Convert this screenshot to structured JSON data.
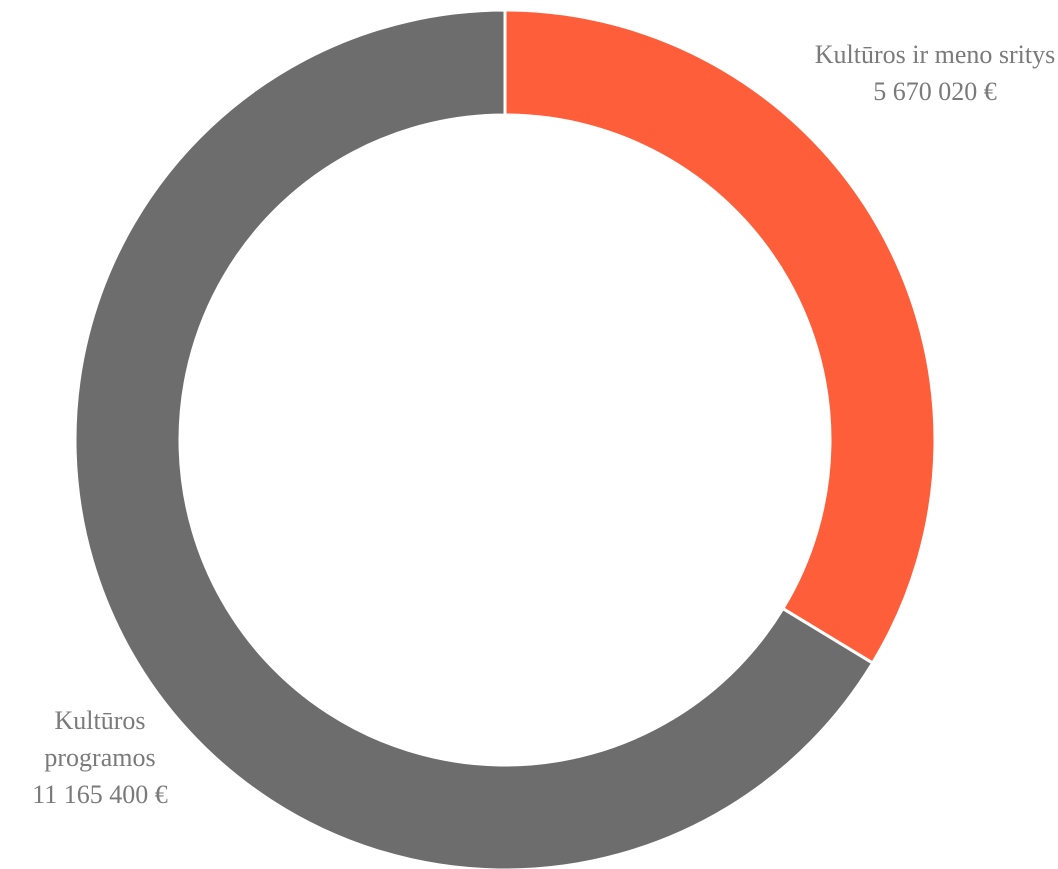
{
  "chart_data": {
    "type": "donut",
    "categories": [
      "Kultūros ir meno sritys",
      "Kultūros programos"
    ],
    "values": [
      5670020,
      11165400
    ],
    "value_labels": [
      "5 670 020 €",
      "11 165 400 €"
    ],
    "colors": [
      "#ff5e3a",
      "#6d6d6d"
    ]
  }
}
